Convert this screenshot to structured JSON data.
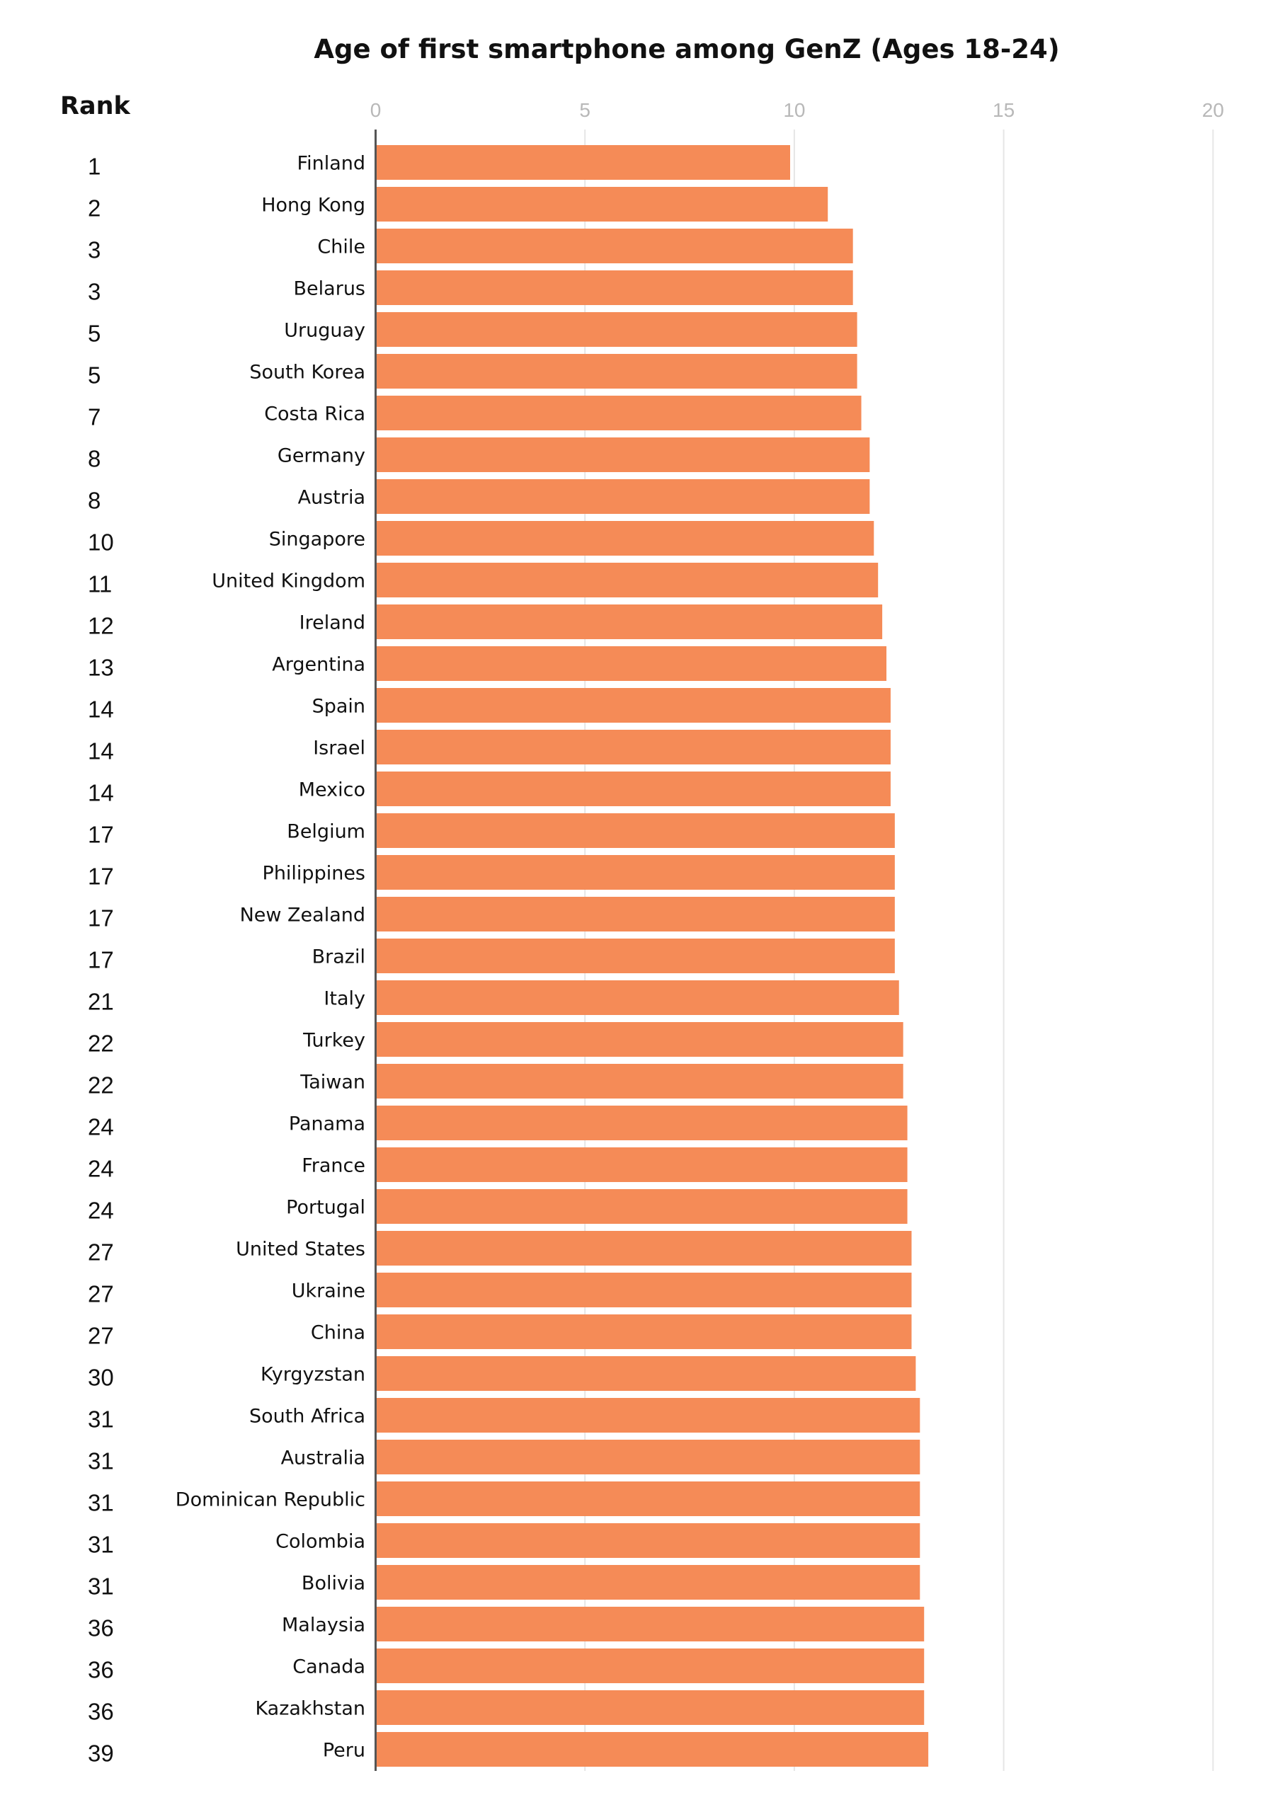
{
  "chart_data": {
    "type": "bar",
    "orientation": "horizontal",
    "title": "Age of first smartphone among GenZ (Ages 18-24)",
    "rank_header": "Rank",
    "xlabel": "",
    "ylabel": "",
    "xlim": [
      0,
      20
    ],
    "xticks": [
      0,
      5,
      10,
      15,
      20
    ],
    "xtick_position": "top",
    "grid": true,
    "bar_color": "#f58b57",
    "ranks": [
      1,
      2,
      3,
      3,
      5,
      5,
      7,
      8,
      8,
      10,
      11,
      12,
      13,
      14,
      14,
      14,
      17,
      17,
      17,
      17,
      21,
      22,
      22,
      24,
      24,
      24,
      27,
      27,
      27,
      30,
      31,
      31,
      31,
      31,
      31,
      36,
      36,
      36,
      39
    ],
    "categories": [
      "Finland",
      "Hong Kong",
      "Chile",
      "Belarus",
      "Uruguay",
      "South Korea",
      "Costa Rica",
      "Germany",
      "Austria",
      "Singapore",
      "United Kingdom",
      "Ireland",
      "Argentina",
      "Spain",
      "Israel",
      "Mexico",
      "Belgium",
      "Philippines",
      "New Zealand",
      "Brazil",
      "Italy",
      "Turkey",
      "Taiwan",
      "Panama",
      "France",
      "Portugal",
      "United States",
      "Ukraine",
      "China",
      "Kyrgyzstan",
      "South Africa",
      "Australia",
      "Dominican Republic",
      "Colombia",
      "Bolivia",
      "Malaysia",
      "Canada",
      "Kazakhstan",
      "Peru"
    ],
    "values": [
      9.9,
      10.8,
      11.4,
      11.4,
      11.5,
      11.5,
      11.6,
      11.8,
      11.8,
      11.9,
      12.0,
      12.1,
      12.2,
      12.3,
      12.3,
      12.3,
      12.4,
      12.4,
      12.4,
      12.4,
      12.5,
      12.6,
      12.6,
      12.7,
      12.7,
      12.7,
      12.8,
      12.8,
      12.8,
      12.9,
      13.0,
      13.0,
      13.0,
      13.0,
      13.0,
      13.1,
      13.1,
      13.1,
      13.2
    ]
  }
}
